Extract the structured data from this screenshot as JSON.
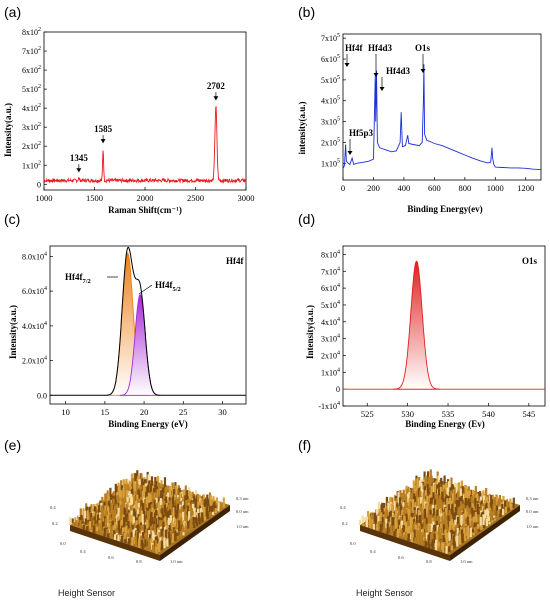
{
  "panel_labels": [
    "(a)",
    "(b)",
    "(c)",
    "(d)",
    "(e)",
    "(f)"
  ],
  "chart_data": [
    {
      "id": "a",
      "type": "line",
      "xlabel": "Raman Shift(cm⁻¹)",
      "ylabel": "Intensity(a.u.)",
      "xlim": [
        1000,
        3000
      ],
      "ylim": [
        -30,
        800
      ],
      "xticks": [
        1000,
        1500,
        2000,
        2500,
        3000
      ],
      "yticks": [
        {
          "v": 0,
          "m": "0",
          "e": ""
        },
        {
          "v": 100,
          "m": "1x10",
          "e": "2"
        },
        {
          "v": 200,
          "m": "2x10",
          "e": "2"
        },
        {
          "v": 300,
          "m": "3x10",
          "e": "2"
        },
        {
          "v": 400,
          "m": "4x10",
          "e": "2"
        },
        {
          "v": 500,
          "m": "5x10",
          "e": "2"
        },
        {
          "v": 600,
          "m": "6x10",
          "e": "2"
        },
        {
          "v": 700,
          "m": "7x10",
          "e": "2"
        },
        {
          "v": 800,
          "m": "8x10",
          "e": "2"
        }
      ],
      "color": "#e8191f",
      "baseline": 20,
      "peaks": [
        {
          "x": 1345,
          "h": 12,
          "w": 6,
          "label": "1345"
        },
        {
          "x": 1585,
          "h": 165,
          "w": 5,
          "label": "1585"
        },
        {
          "x": 2702,
          "h": 390,
          "w": 10,
          "label": "2702"
        }
      ]
    },
    {
      "id": "b",
      "type": "line",
      "xlabel": "Binding Energy(ev)",
      "ylabel": "intensity(a.u.)",
      "xlim": [
        0,
        1300
      ],
      "ylim": [
        20000,
        720000
      ],
      "xticks": [
        0,
        200,
        400,
        600,
        800,
        1000,
        1200
      ],
      "yticks": [
        {
          "v": 100000,
          "m": "1x10",
          "e": "5"
        },
        {
          "v": 200000,
          "m": "2x10",
          "e": "5"
        },
        {
          "v": 300000,
          "m": "3x10",
          "e": "5"
        },
        {
          "v": 400000,
          "m": "4x10",
          "e": "5"
        },
        {
          "v": 500000,
          "m": "5x10",
          "e": "5"
        },
        {
          "v": 600000,
          "m": "6x10",
          "e": "5"
        },
        {
          "v": 700000,
          "m": "7x10",
          "e": "5"
        }
      ],
      "color": "#1a2fd8",
      "points": [
        [
          0,
          75000
        ],
        [
          10,
          90000
        ],
        [
          17,
          190000
        ],
        [
          22,
          110000
        ],
        [
          35,
          100000
        ],
        [
          45,
          95000
        ],
        [
          60,
          125000
        ],
        [
          70,
          95000
        ],
        [
          90,
          100000
        ],
        [
          130,
          105000
        ],
        [
          170,
          110000
        ],
        [
          200,
          120000
        ],
        [
          212,
          530000
        ],
        [
          215,
          300000
        ],
        [
          220,
          545000
        ],
        [
          226,
          200000
        ],
        [
          240,
          175000
        ],
        [
          280,
          165000
        ],
        [
          320,
          155000
        ],
        [
          350,
          160000
        ],
        [
          375,
          200000
        ],
        [
          382,
          345000
        ],
        [
          390,
          180000
        ],
        [
          410,
          185000
        ],
        [
          425,
          235000
        ],
        [
          432,
          195000
        ],
        [
          460,
          190000
        ],
        [
          500,
          185000
        ],
        [
          520,
          200000
        ],
        [
          528,
          400000
        ],
        [
          531,
          575000
        ],
        [
          536,
          240000
        ],
        [
          550,
          210000
        ],
        [
          570,
          205000
        ],
        [
          600,
          195000
        ],
        [
          650,
          185000
        ],
        [
          700,
          170000
        ],
        [
          750,
          155000
        ],
        [
          800,
          140000
        ],
        [
          850,
          125000
        ],
        [
          900,
          112000
        ],
        [
          950,
          102000
        ],
        [
          970,
          105000
        ],
        [
          978,
          175000
        ],
        [
          982,
          125000
        ],
        [
          990,
          95000
        ],
        [
          1000,
          82000
        ],
        [
          1050,
          80000
        ],
        [
          1100,
          78000
        ],
        [
          1150,
          78000
        ],
        [
          1200,
          76000
        ],
        [
          1250,
          72000
        ],
        [
          1300,
          70000
        ]
      ],
      "annotations": [
        {
          "label": "Hf4f",
          "x": 40
        },
        {
          "label": "Hf4d3",
          "x": 230
        },
        {
          "label": "Hf4d3",
          "x": 270
        },
        {
          "label": "O1s",
          "x": 550
        },
        {
          "label": "Hf5p3",
          "x": 40
        }
      ]
    },
    {
      "id": "c",
      "type": "area",
      "xlabel": "Binding Energy (eV)",
      "ylabel": "Intensity(a.u.)",
      "legend_text": "Hf4f",
      "xlim": [
        8,
        33
      ],
      "ylim": [
        -5000,
        86000
      ],
      "xticks": [
        10,
        15,
        20,
        25,
        30
      ],
      "yticks": [
        {
          "v": 0,
          "m": "0.0",
          "e": ""
        },
        {
          "v": 20000,
          "m": "2.0x10",
          "e": "4"
        },
        {
          "v": 40000,
          "m": "4.0x10",
          "e": "4"
        },
        {
          "v": 60000,
          "m": "6.0x10",
          "e": "4"
        },
        {
          "v": 80000,
          "m": "8.0x10",
          "e": "4"
        }
      ],
      "components": [
        {
          "name": "Hf4f7/2",
          "label_main": "Hf4f",
          "label_sub": "7/2",
          "center": 17.9,
          "height": 82000,
          "sigma": 0.7,
          "color": "#ee8018"
        },
        {
          "name": "Hf4f5/2",
          "label_main": "Hf4f",
          "label_sub": "5/2",
          "center": 19.5,
          "height": 58000,
          "sigma": 0.65,
          "color": "#a629d6"
        }
      ]
    },
    {
      "id": "d",
      "type": "area",
      "xlabel": "Binding Energy (Ev)",
      "ylabel": "Intensity(a.u.)",
      "legend_text": "O1s",
      "xlim": [
        522,
        547
      ],
      "ylim": [
        -10000,
        85000
      ],
      "xticks": [
        525,
        530,
        535,
        540,
        545
      ],
      "yticks": [
        {
          "v": -10000,
          "m": "-1x10",
          "e": "4"
        },
        {
          "v": 0,
          "m": "0",
          "e": ""
        },
        {
          "v": 10000,
          "m": "1x10",
          "e": "4"
        },
        {
          "v": 20000,
          "m": "2x10",
          "e": "4"
        },
        {
          "v": 30000,
          "m": "3x10",
          "e": "4"
        },
        {
          "v": 40000,
          "m": "4x10",
          "e": "4"
        },
        {
          "v": 50000,
          "m": "5x10",
          "e": "4"
        },
        {
          "v": 60000,
          "m": "6x10",
          "e": "4"
        },
        {
          "v": 70000,
          "m": "7x10",
          "e": "4"
        },
        {
          "v": 80000,
          "m": "8x10",
          "e": "4"
        }
      ],
      "center": 531.1,
      "height": 76000,
      "sigma": 0.7,
      "color": "#e02020"
    }
  ],
  "surface_panels": [
    {
      "id": "e",
      "caption": "Height Sensor",
      "axis_labels": [
        "0,3 um",
        "0.0 um",
        "1.0 um",
        "0.4",
        "0.2",
        "0.0",
        "0.4",
        "0.6",
        "0.8",
        "1.0 um"
      ]
    },
    {
      "id": "f",
      "caption": "Height Sensor",
      "axis_labels": [
        "0,3 um",
        "0.0 um",
        "1.0 um",
        "0.4",
        "0.2",
        "0.0",
        "0.4",
        "0.6",
        "0.8",
        "1.0 um"
      ]
    }
  ]
}
